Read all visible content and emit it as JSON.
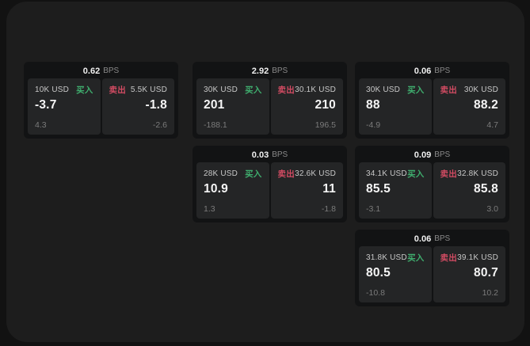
{
  "labels": {
    "buy": "买入",
    "sell": "卖出",
    "bps_unit": "BPS"
  },
  "colors": {
    "buy_green": "#3fae6e",
    "sell_red": "#d14b62",
    "window_bg": "#1d1d1d",
    "card_bg": "#121314",
    "panel_bg": "#242526"
  },
  "cards": [
    {
      "bps": "0.62",
      "buy": {
        "amount": "10K USD",
        "value": "-3.7",
        "sub": "4.3"
      },
      "sell": {
        "amount": "5.5K USD",
        "value": "-1.8",
        "sub": "-2.6"
      }
    },
    {
      "bps": "2.92",
      "buy": {
        "amount": "30K USD",
        "value": "201",
        "sub": "-188.1"
      },
      "sell": {
        "amount": "30.1K USD",
        "value": "210",
        "sub": "196.5"
      }
    },
    {
      "bps": "0.06",
      "buy": {
        "amount": "30K USD",
        "value": "88",
        "sub": "-4.9"
      },
      "sell": {
        "amount": "30K USD",
        "value": "88.2",
        "sub": "4.7"
      }
    },
    {
      "bps": "0.03",
      "buy": {
        "amount": "28K USD",
        "value": "10.9",
        "sub": "1.3"
      },
      "sell": {
        "amount": "32.6K USD",
        "value": "11",
        "sub": "-1.8"
      }
    },
    {
      "bps": "0.09",
      "buy": {
        "amount": "34.1K USD",
        "value": "85.5",
        "sub": "-3.1"
      },
      "sell": {
        "amount": "32.8K USD",
        "value": "85.8",
        "sub": "3.0"
      }
    },
    {
      "bps": "0.06",
      "buy": {
        "amount": "31.8K USD",
        "value": "80.5",
        "sub": "-10.8"
      },
      "sell": {
        "amount": "39.1K USD",
        "value": "80.7",
        "sub": "10.2"
      }
    }
  ]
}
